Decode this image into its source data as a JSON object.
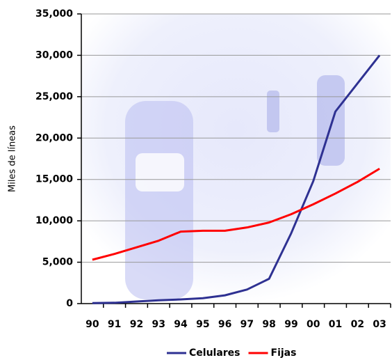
{
  "chart_data": {
    "type": "line",
    "ylabel": "Miles de líneas",
    "categories": [
      "90",
      "91",
      "92",
      "93",
      "94",
      "95",
      "96",
      "97",
      "98",
      "99",
      "00",
      "01",
      "02",
      "03"
    ],
    "series": [
      {
        "name": "Celulares",
        "color": "#2e3192",
        "values": [
          60,
          100,
          250,
          400,
          500,
          650,
          1000,
          1700,
          3000,
          8500,
          14800,
          23200,
          26600,
          30000
        ]
      },
      {
        "name": "Fijas",
        "color": "#ff0000",
        "values": [
          5300,
          6000,
          6800,
          7600,
          8700,
          8800,
          8800,
          9200,
          9800,
          10800,
          12000,
          13300,
          14700,
          16300
        ]
      }
    ],
    "ylim": [
      0,
      35000
    ],
    "yticks": [
      0,
      {
        "value": 5000,
        "label": "5,000"
      },
      {
        "value": 10000,
        "label": "10,000"
      },
      {
        "value": 15000,
        "label": "15,000"
      },
      {
        "value": 20000,
        "label": "20,000"
      },
      {
        "value": 25000,
        "label": "25,000"
      },
      {
        "value": 30000,
        "label": "30,000"
      },
      {
        "value": 35000,
        "label": "35,000"
      }
    ],
    "grid": true,
    "legend": "bottom"
  }
}
